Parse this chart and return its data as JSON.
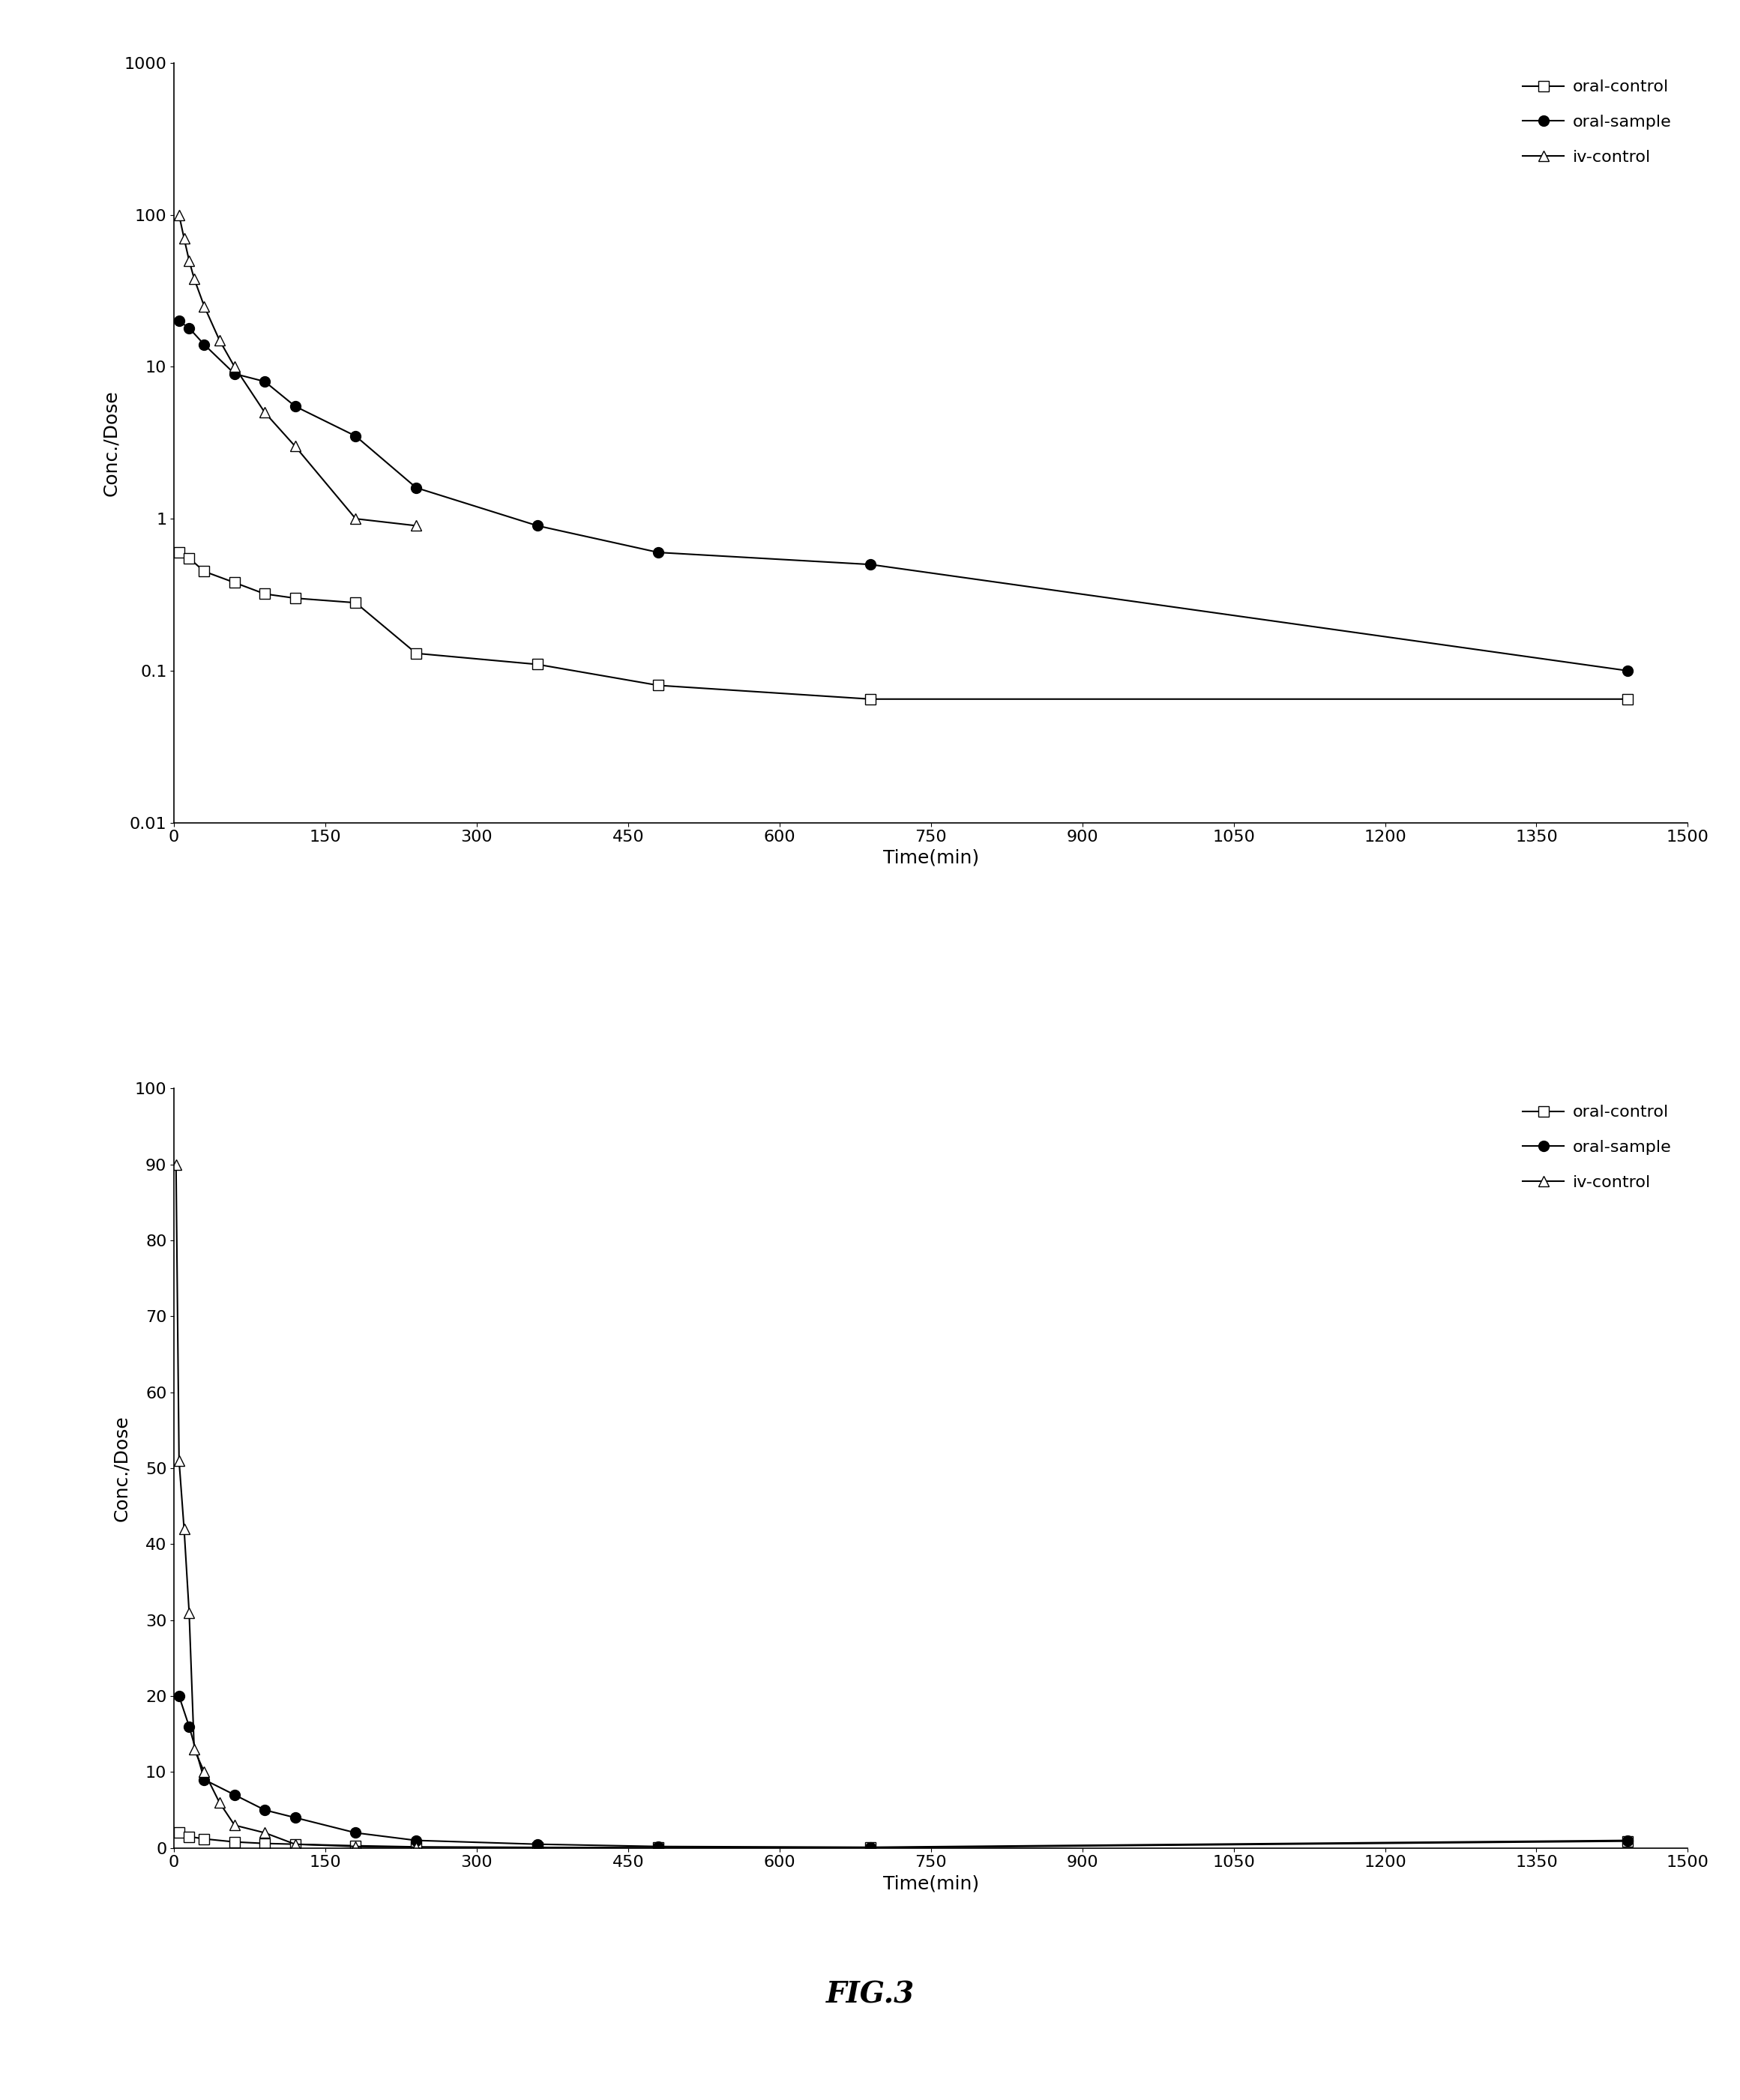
{
  "plot1": {
    "oral_control": {
      "x": [
        5,
        15,
        30,
        60,
        90,
        120,
        180,
        240,
        360,
        480,
        690,
        1440
      ],
      "y": [
        0.6,
        0.55,
        0.45,
        0.38,
        0.32,
        0.3,
        0.28,
        0.13,
        0.11,
        0.08,
        0.065,
        0.065
      ]
    },
    "oral_sample": {
      "x": [
        5,
        15,
        30,
        60,
        90,
        120,
        180,
        240,
        360,
        480,
        690,
        1440
      ],
      "y": [
        20,
        18,
        14,
        9,
        8,
        5.5,
        3.5,
        1.6,
        0.9,
        0.6,
        0.5,
        0.1
      ]
    },
    "iv_control": {
      "x": [
        5,
        10,
        15,
        20,
        30,
        45,
        60,
        90,
        120,
        180,
        240
      ],
      "y": [
        100,
        70,
        50,
        38,
        25,
        15,
        10,
        5,
        3,
        1.0,
        0.9
      ]
    },
    "ylabel": "Conc./Dose",
    "xlabel": "Time(min)",
    "ylim": [
      0.01,
      1000
    ],
    "xlim": [
      0,
      1500
    ],
    "xticks": [
      0,
      150,
      300,
      450,
      600,
      750,
      900,
      1050,
      1200,
      1350,
      1500
    ],
    "ytick_vals": [
      0.01,
      0.1,
      1,
      10,
      100,
      1000
    ],
    "ytick_labels": [
      "0.01",
      "0.1",
      "1",
      "10",
      "100",
      "1000"
    ]
  },
  "plot2": {
    "oral_control": {
      "x": [
        5,
        15,
        30,
        60,
        90,
        120,
        180,
        240,
        360,
        480,
        690,
        1440
      ],
      "y": [
        2.0,
        1.5,
        1.2,
        0.8,
        0.6,
        0.5,
        0.3,
        0.15,
        0.08,
        0.05,
        0.03,
        0.9
      ]
    },
    "oral_sample": {
      "x": [
        5,
        15,
        30,
        60,
        90,
        120,
        180,
        240,
        360,
        480,
        690,
        1440
      ],
      "y": [
        20,
        16,
        9,
        7,
        5,
        4,
        2,
        1.0,
        0.5,
        0.2,
        0.1,
        1.0
      ]
    },
    "iv_control": {
      "x": [
        2,
        5,
        10,
        15,
        20,
        30,
        45,
        60,
        90,
        120,
        180,
        240
      ],
      "y": [
        90,
        51,
        42,
        31,
        13,
        10,
        6,
        3,
        2,
        0.5,
        0.2,
        0.1
      ]
    },
    "ylabel": "Conc./Dose",
    "xlabel": "Time(min)",
    "ylim": [
      0,
      100
    ],
    "xlim": [
      0,
      1500
    ],
    "xticks": [
      0,
      150,
      300,
      450,
      600,
      750,
      900,
      1050,
      1200,
      1350,
      1500
    ],
    "yticks": [
      0,
      10,
      20,
      30,
      40,
      50,
      60,
      70,
      80,
      90,
      100
    ]
  },
  "legend_labels": [
    "oral-control",
    "oral-sample",
    "iv-control"
  ],
  "fig_title": "FIG.3",
  "background_color": "#ffffff",
  "line_color": "#000000"
}
